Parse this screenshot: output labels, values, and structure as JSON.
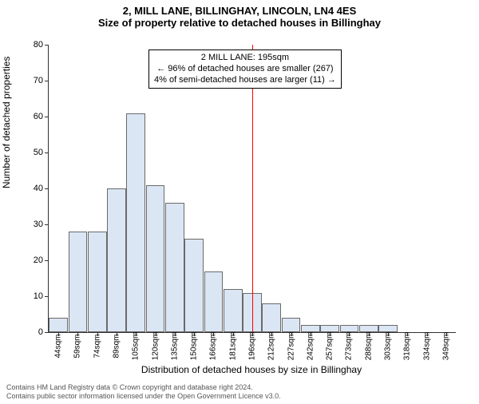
{
  "titles": {
    "line1": "2, MILL LANE, BILLINGHAY, LINCOLN, LN4 4ES",
    "line2": "Size of property relative to detached houses in Billinghay"
  },
  "ylabel": "Number of detached properties",
  "xlabel": "Distribution of detached houses by size in Billinghay",
  "chart": {
    "type": "bar",
    "ylim": [
      0,
      80
    ],
    "ytick_step": 10,
    "bar_fill": "#dbe6f4",
    "bar_stroke": "#6a6a6a",
    "background": "#ffffff",
    "categories": [
      "44sqm",
      "59sqm",
      "74sqm",
      "89sqm",
      "105sqm",
      "120sqm",
      "135sqm",
      "150sqm",
      "166sqm",
      "181sqm",
      "196sqm",
      "212sqm",
      "227sqm",
      "242sqm",
      "257sqm",
      "273sqm",
      "288sqm",
      "303sqm",
      "318sqm",
      "334sqm",
      "349sqm"
    ],
    "values": [
      4,
      28,
      28,
      40,
      61,
      41,
      36,
      26,
      17,
      12,
      11,
      8,
      4,
      2,
      2,
      2,
      2,
      2,
      0,
      0,
      0
    ],
    "reference_line": {
      "category_index": 10,
      "color": "#ff0000"
    },
    "annotation": {
      "lines": [
        "2 MILL LANE: 195sqm",
        "← 96% of detached houses are smaller (267)",
        "4% of semi-detached houses are larger (11) →"
      ]
    }
  },
  "footer": {
    "line1": "Contains HM Land Registry data © Crown copyright and database right 2024.",
    "line2": "Contains public sector information licensed under the Open Government Licence v3.0."
  }
}
